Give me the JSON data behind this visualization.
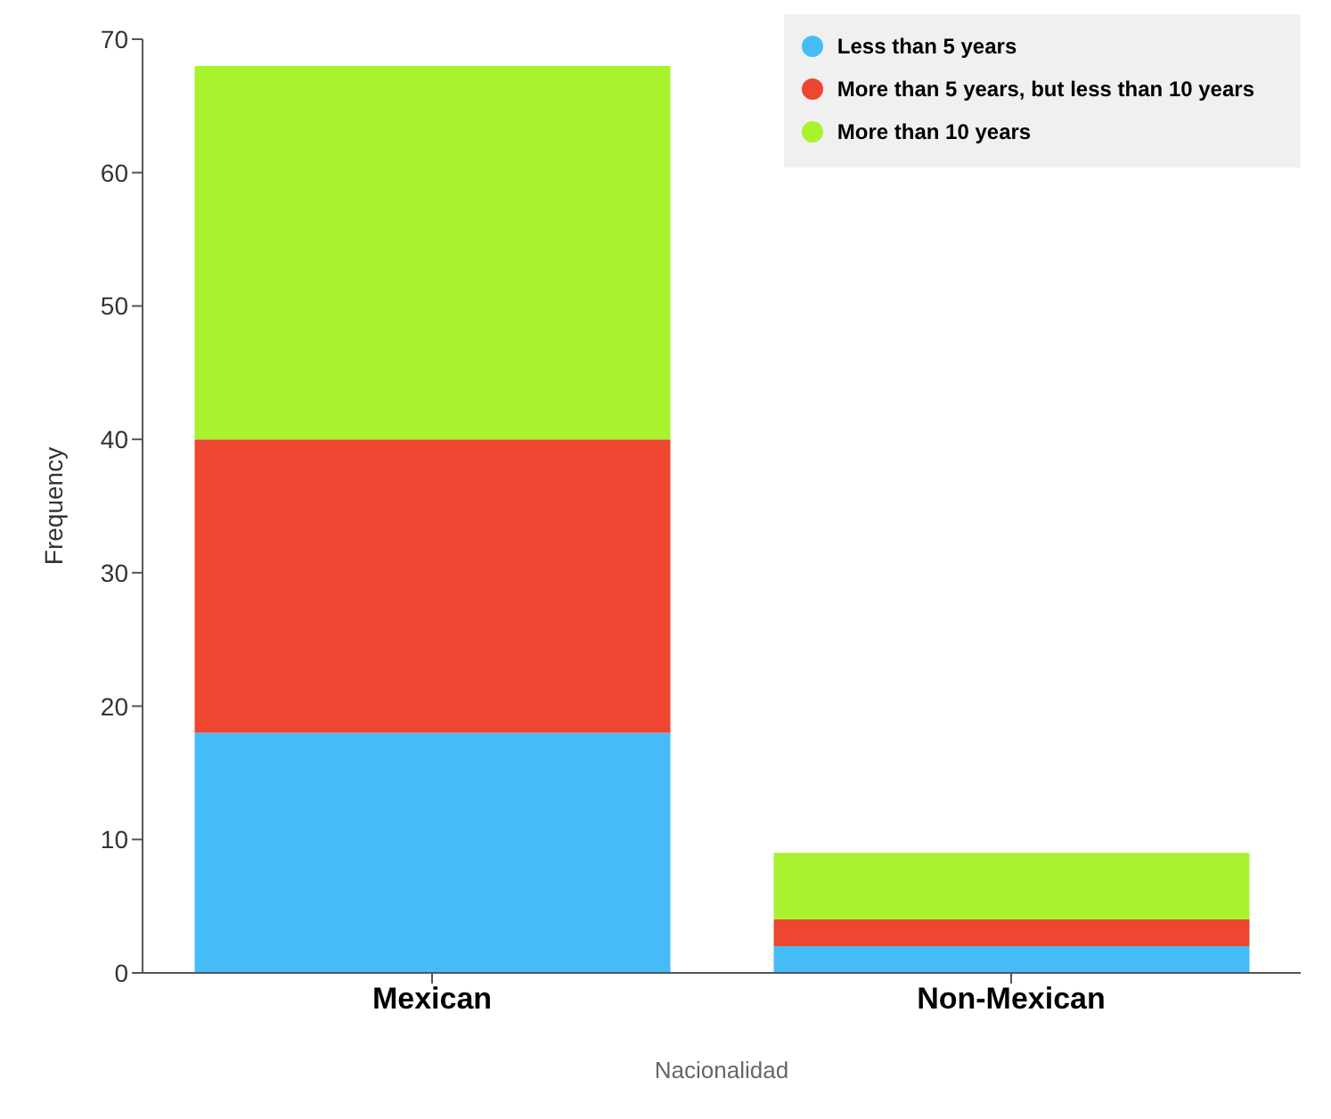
{
  "chart_data": {
    "type": "bar",
    "xlabel": "Nacionalidad",
    "ylabel": "Frequency",
    "categories": [
      "Mexican",
      "Non-Mexican"
    ],
    "stacked": true,
    "series": [
      {
        "name": "Less than 5 years",
        "color": "#45bcf7",
        "values": [
          18,
          2
        ]
      },
      {
        "name": "More than 5 years, but less than 10 years",
        "color": "#ee4630",
        "values": [
          22,
          2
        ]
      },
      {
        "name": "More than 10 years",
        "color": "#a8f22e",
        "values": [
          28,
          5
        ]
      }
    ],
    "ylim": [
      0,
      70
    ],
    "yticks": [
      0,
      10,
      20,
      30,
      40,
      50,
      60,
      70
    ],
    "grid": false,
    "legend": "top right"
  }
}
